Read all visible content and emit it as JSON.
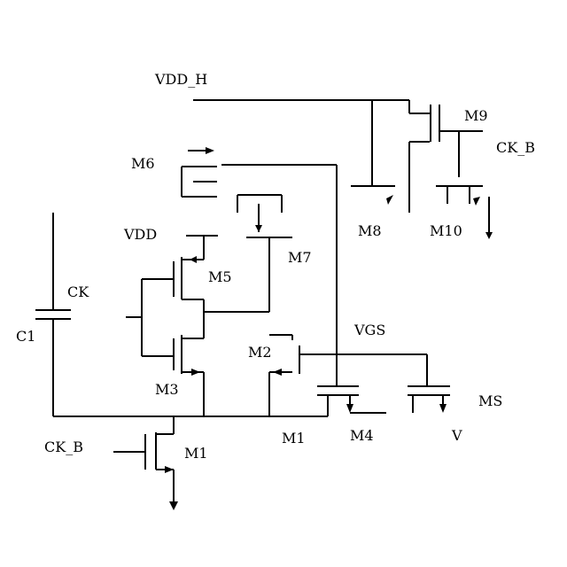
{
  "labels": {
    "vdd_top": "VDD_H",
    "vdd": "VDD",
    "m9": "M9",
    "ck_right": "CK_B",
    "m8": "M8",
    "m10": "M10",
    "m6": "M6",
    "m7": "M7",
    "ck_left": "CK",
    "m5": "M5",
    "c1": "C1",
    "m3": "M3",
    "m2": "M2",
    "vgs": "VGS",
    "ms_right": "MS",
    "ck_bottom": "CK_B",
    "m4": "M4",
    "m1": "M1",
    "m1b": "M1",
    "v_bottom": "V"
  }
}
